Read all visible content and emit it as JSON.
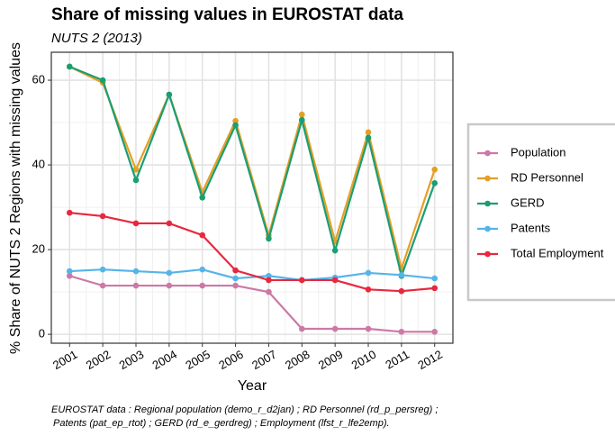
{
  "chart_data": {
    "type": "line",
    "title": "Share of missing values in EUROSTAT data",
    "subtitle": "NUTS 2 (2013)",
    "x_label": "Year",
    "y_label": "% Share of NUTS 2 Regions with missing values",
    "caption": [
      "EUROSTAT data : Regional population (demo_r_d2jan) ; RD Personnel (rd_p_persreg) ;",
      "Patents (pat_ep_rtot) ; GERD (rd_e_gerdreg) ; Employment (lfst_r_lfe2emp)."
    ],
    "x": [
      2001,
      2002,
      2003,
      2004,
      2005,
      2006,
      2007,
      2008,
      2009,
      2010,
      2011,
      2012
    ],
    "xlim": [
      2000.45,
      2012.55
    ],
    "xticks": [
      2001,
      2002,
      2003,
      2004,
      2005,
      2006,
      2007,
      2008,
      2009,
      2010,
      2011,
      2012
    ],
    "ylim": [
      -2.1,
      66.6
    ],
    "yticks": [
      0,
      20,
      40,
      60
    ],
    "grid": true,
    "legend": "right",
    "series": [
      {
        "name": "Population",
        "color": "#cc79a7",
        "values": [
          13.8,
          11.5,
          11.5,
          11.5,
          11.5,
          11.5,
          10.0,
          1.3,
          1.3,
          1.3,
          0.6,
          0.6
        ]
      },
      {
        "name": "RD Personnel",
        "color": "#e69f25",
        "values": [
          63.2,
          59.4,
          38.9,
          56.6,
          33.6,
          50.4,
          23.4,
          51.9,
          21.9,
          47.7,
          15.5,
          38.9
        ]
      },
      {
        "name": "GERD",
        "color": "#1a9e73",
        "values": [
          63.2,
          60.0,
          36.4,
          56.6,
          32.3,
          49.4,
          22.6,
          50.6,
          19.8,
          46.4,
          13.8,
          35.7
        ]
      },
      {
        "name": "Patents",
        "color": "#56b4e9",
        "values": [
          14.9,
          15.3,
          14.9,
          14.5,
          15.3,
          13.2,
          13.8,
          12.8,
          13.4,
          14.5,
          14.0,
          13.2
        ]
      },
      {
        "name": "Total Employment",
        "color": "#e8283f",
        "values": [
          28.7,
          27.9,
          26.2,
          26.2,
          23.4,
          15.1,
          12.8,
          12.8,
          12.8,
          10.6,
          10.2,
          10.9
        ]
      }
    ]
  }
}
